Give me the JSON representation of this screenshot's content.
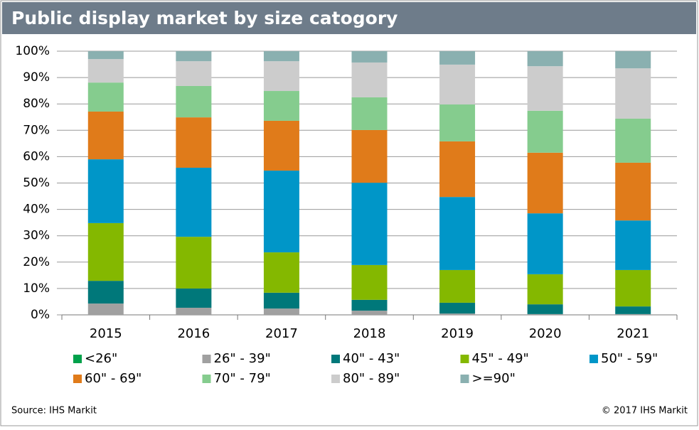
{
  "chart_data": {
    "type": "stacked-bar",
    "title": "Public display market by size catogory",
    "categories": [
      "2015",
      "2016",
      "2017",
      "2018",
      "2019",
      "2020",
      "2021"
    ],
    "series": [
      {
        "name": "<26\"",
        "color": "#00a14b",
        "values": [
          0,
          0,
          0,
          0,
          0,
          0,
          0
        ]
      },
      {
        "name": "26\" - 39\"",
        "color": "#a0a0a0",
        "values": [
          4.3,
          2.7,
          2.4,
          1.6,
          0.5,
          0.3,
          0.3
        ]
      },
      {
        "name": "40\" - 43\"",
        "color": "#00787a",
        "values": [
          8.6,
          7.3,
          6.0,
          4.1,
          4.1,
          3.7,
          2.9
        ]
      },
      {
        "name": "45\" - 49\"",
        "color": "#84b800",
        "values": [
          21.9,
          19.6,
          15.3,
          13.2,
          12.4,
          11.4,
          13.8
        ]
      },
      {
        "name": "50\" - 59\"",
        "color": "#0096c8",
        "values": [
          24.2,
          26.2,
          31.0,
          31.2,
          27.7,
          23.1,
          18.8
        ]
      },
      {
        "name": "60\" - 69\"",
        "color": "#e07b1a",
        "values": [
          18.1,
          19.1,
          18.9,
          20.0,
          21.1,
          23.0,
          21.9
        ]
      },
      {
        "name": "70\" - 79\"",
        "color": "#85cc8e",
        "values": [
          11.0,
          11.9,
          11.3,
          12.4,
          14.0,
          15.9,
          16.7
        ]
      },
      {
        "name": "80\" - 89\"",
        "color": "#cccccc",
        "values": [
          8.9,
          9.4,
          11.3,
          13.2,
          15.1,
          16.9,
          19.1
        ]
      },
      {
        "name": ">=90\"",
        "color": "#8ab0b0",
        "values": [
          3.0,
          3.8,
          3.8,
          4.3,
          5.1,
          5.7,
          6.5
        ]
      }
    ],
    "ylim": [
      0,
      100
    ],
    "yticks": [
      {
        "value": 0,
        "label": "0%"
      },
      {
        "value": 10,
        "label": "10%"
      },
      {
        "value": 20,
        "label": "20%"
      },
      {
        "value": 30,
        "label": "30%"
      },
      {
        "value": 40,
        "label": "40%"
      },
      {
        "value": 50,
        "label": "50%"
      },
      {
        "value": 60,
        "label": "60%"
      },
      {
        "value": 70,
        "label": "70%"
      },
      {
        "value": 80,
        "label": "80%"
      },
      {
        "value": 90,
        "label": "90%"
      },
      {
        "value": 100,
        "label": "100%"
      }
    ],
    "grid": true,
    "source": "Source: IHS Markit",
    "copyright": "© 2017 IHS Markit"
  }
}
